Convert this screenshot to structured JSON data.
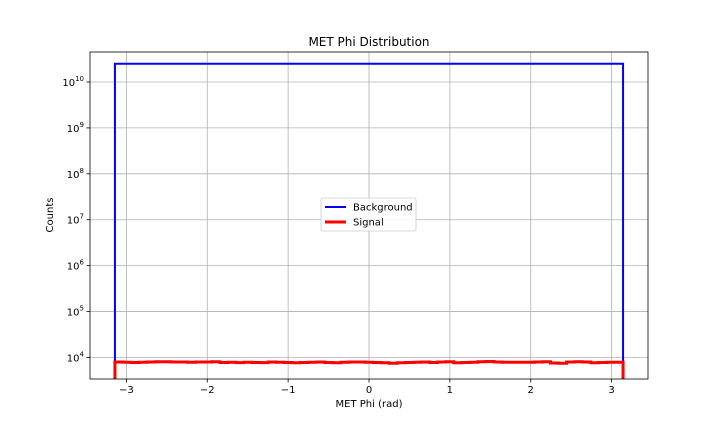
{
  "chart_data": {
    "type": "step",
    "title": "MET Phi Distribution",
    "xlabel": "MET Phi (rad)",
    "ylabel": "Counts",
    "xlim": [
      -3.45,
      3.45
    ],
    "ylim": [
      3400,
      45000000000
    ],
    "yscale": "log",
    "grid": true,
    "x_ticks": [
      {
        "value": -3,
        "label": "−3"
      },
      {
        "value": -2,
        "label": "−2"
      },
      {
        "value": -1,
        "label": "−1"
      },
      {
        "value": 0,
        "label": "0"
      },
      {
        "value": 1,
        "label": "1"
      },
      {
        "value": 2,
        "label": "2"
      },
      {
        "value": 3,
        "label": "3"
      }
    ],
    "y_ticks": [
      {
        "value": 10000,
        "base": "10",
        "exp": "4"
      },
      {
        "value": 100000,
        "base": "10",
        "exp": "5"
      },
      {
        "value": 1000000,
        "base": "10",
        "exp": "6"
      },
      {
        "value": 10000000,
        "base": "10",
        "exp": "7"
      },
      {
        "value": 100000000,
        "base": "10",
        "exp": "8"
      },
      {
        "value": 1000000000,
        "base": "10",
        "exp": "9"
      },
      {
        "value": 10000000000,
        "base": "10",
        "exp": "10"
      }
    ],
    "bin_range": [
      -3.14159,
      3.14159
    ],
    "legend_position": "center",
    "series": [
      {
        "name": "Background",
        "color": "#0000ff",
        "linewidth": 2,
        "values": [
          25000000000
        ]
      },
      {
        "name": "Signal",
        "color": "#ff0000",
        "linewidth": 3,
        "values": [
          8000,
          7900,
          7800,
          7900,
          8000,
          8100,
          8100,
          8000,
          8000,
          7900,
          7950,
          8000,
          8100,
          7800,
          7900,
          7750,
          7850,
          7800,
          7750,
          8000,
          7900,
          7800,
          7700,
          7800,
          7900,
          8000,
          7800,
          7700,
          7900,
          8000,
          7950,
          7900,
          7800,
          7700,
          7500,
          7700,
          7800,
          7900,
          8000,
          7800,
          8000,
          8100,
          7700,
          7800,
          7900,
          8100,
          8200,
          8000,
          7900,
          7900,
          7900,
          7900,
          8000,
          8100,
          7600,
          7500,
          8000,
          8100,
          8000,
          7700,
          7800,
          7900,
          7900
        ]
      }
    ]
  }
}
